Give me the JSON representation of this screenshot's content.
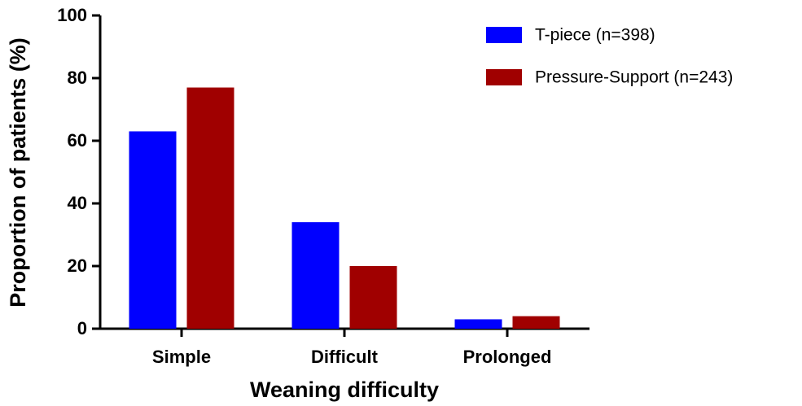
{
  "chart_data": {
    "type": "bar",
    "x_label": "Weaning difficulty",
    "y_label": "Proportion of patients (%)",
    "categories": [
      "Simple",
      "Difficult",
      "Prolonged"
    ],
    "series": [
      {
        "name": "T-piece (n=398)",
        "color": "#0000ff",
        "values": [
          63,
          34,
          3
        ]
      },
      {
        "name": "Pressure-Support (n=243)",
        "color": "#a00000",
        "values": [
          77,
          20,
          4
        ]
      }
    ],
    "ylim": [
      0,
      100
    ],
    "yticks": [
      0,
      20,
      40,
      60,
      80,
      100
    ],
    "legend": "upper right"
  }
}
